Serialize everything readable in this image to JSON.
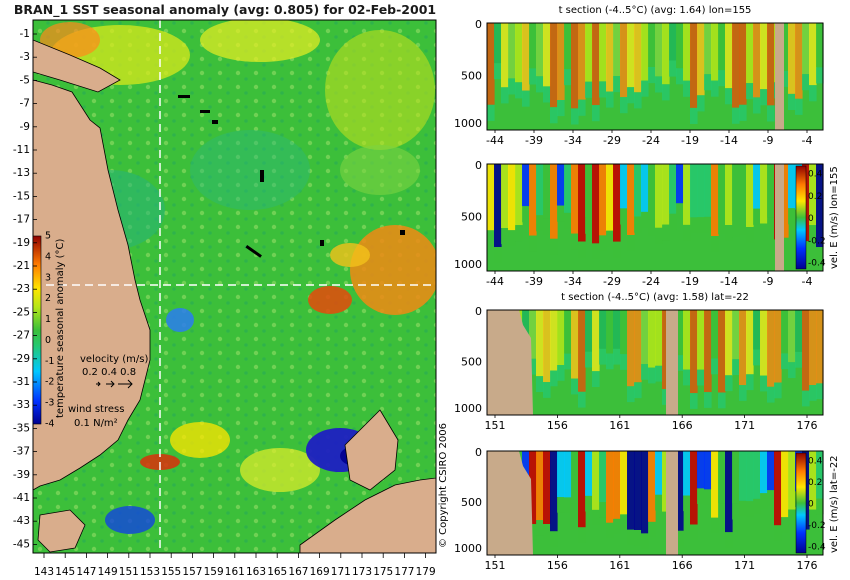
{
  "map": {
    "title": "BRAN_1 SST seasonal anomaly (avg: 0.805) for 02-Feb-2001",
    "lat_ticks": [
      "-1",
      "-3",
      "-5",
      "-7",
      "-9",
      "-11",
      "-13",
      "-15",
      "-17",
      "-19",
      "-21",
      "-23",
      "-25",
      "-27",
      "-29",
      "-31",
      "-33",
      "-35",
      "-37",
      "-39",
      "-41",
      "-43",
      "-45"
    ],
    "lon_ticks_text": "1431451471491511531551571591611631651671691711731751771 79",
    "lon_ticks": [
      "143",
      "145",
      "147",
      "149",
      "151",
      "153",
      "155",
      "157",
      "159",
      "161",
      "163",
      "165",
      "167",
      "169",
      "171",
      "173",
      "175",
      "177",
      "179"
    ],
    "colorbar_label": "temperature seasonal anomaly (°C)",
    "colorbar_ticks": [
      "5",
      "4",
      "3",
      "2",
      "1",
      "0",
      "-1",
      "-2",
      "-3",
      "-4"
    ],
    "velocity_label": "velocity (m/s)",
    "velocity_scale": "0.2 0.4 0.8",
    "wind_label": "wind stress",
    "wind_scale": "0.1 N/m²",
    "copyright": "© Copyright CSIRO 2006"
  },
  "panels": [
    {
      "title": "t section (-4..5°C) (avg: 1.64) lon=155",
      "y_ticks": [
        "0",
        "500",
        "1000"
      ],
      "x_ticks": [
        "-44",
        "-39",
        "-34",
        "-29",
        "-24",
        "-19",
        "-14",
        "-9",
        "-4"
      ],
      "side_label": "",
      "colorbar_ticks": []
    },
    {
      "title": "",
      "y_ticks": [
        "0",
        "500",
        "1000"
      ],
      "x_ticks": [
        "-44",
        "-39",
        "-34",
        "-29",
        "-24",
        "-19",
        "-14",
        "-9",
        "-4"
      ],
      "side_label": "vel. E (m/s) lon=155",
      "colorbar_ticks": [
        "0.4",
        "0.2",
        "0",
        "-0.2",
        "-0.4"
      ]
    },
    {
      "title": "t section (-4..5°C) (avg: 1.58) lat=-22",
      "y_ticks": [
        "0",
        "500",
        "1000"
      ],
      "x_ticks": [
        "151",
        "156",
        "161",
        "166",
        "171",
        "176"
      ],
      "side_label": "",
      "colorbar_ticks": []
    },
    {
      "title": "",
      "y_ticks": [
        "0",
        "500",
        "1000"
      ],
      "x_ticks": [
        "151",
        "156",
        "161",
        "166",
        "171",
        "176"
      ],
      "side_label": "vel. E (m/s) lat=-22",
      "colorbar_ticks": [
        "0.4",
        "0.2",
        "0",
        "-0.2",
        "-0.4"
      ]
    }
  ],
  "chart_data": [
    {
      "type": "heatmap",
      "title": "BRAN_1 SST seasonal anomaly (avg: 0.805) for 02-Feb-2001",
      "xlabel": "",
      "ylabel": "",
      "xlim": [
        143,
        180
      ],
      "ylim": [
        -45,
        0
      ],
      "colorbar_range": [
        -4,
        5
      ],
      "colorbar_label": "temperature seasonal anomaly (°C)",
      "average": 0.805,
      "section_lines": {
        "lon": 155,
        "lat": -22
      }
    },
    {
      "type": "heatmap",
      "title": "t section (-4..5°C) (avg: 1.64) lon=155",
      "xlim": [
        -45,
        -1
      ],
      "ylim": [
        1000,
        0
      ],
      "colorbar_range": [
        -4,
        5
      ],
      "average": 1.64
    },
    {
      "type": "heatmap",
      "title": "",
      "xlim": [
        -45,
        -1
      ],
      "ylim": [
        1000,
        0
      ],
      "colorbar_range": [
        -0.4,
        0.4
      ],
      "colorbar_label": "vel. E (m/s) lon=155"
    },
    {
      "type": "heatmap",
      "title": "t section (-4..5°C) (avg: 1.58) lat=-22",
      "xlim": [
        150,
        180
      ],
      "ylim": [
        1000,
        0
      ],
      "colorbar_range": [
        -4,
        5
      ],
      "average": 1.58
    },
    {
      "type": "heatmap",
      "title": "",
      "xlim": [
        150,
        180
      ],
      "ylim": [
        1000,
        0
      ],
      "colorbar_range": [
        -0.4,
        0.4
      ],
      "colorbar_label": "vel. E (m/s) lat=-22"
    }
  ],
  "colors": {
    "land": "#d9ad8c",
    "green": "#3cbf3a",
    "page": "#ffffff"
  }
}
